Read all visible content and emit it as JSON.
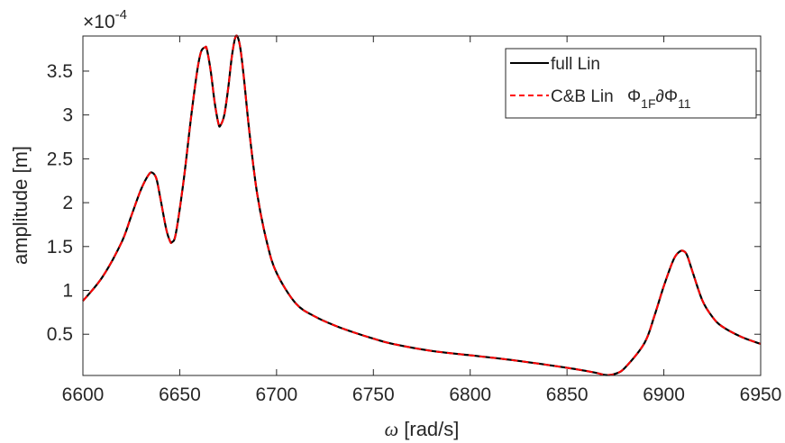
{
  "chart_data": {
    "type": "line",
    "title": "",
    "xlabel_symbol": "ω",
    "xlabel_rest": " [rad/s]",
    "ylabel": "amplitude [m]",
    "exponent_label": {
      "base": "×10",
      "power": "-4"
    },
    "xlim": [
      6600,
      6950
    ],
    "ylim": [
      0.03,
      3.9
    ],
    "xticks": [
      6600,
      6650,
      6700,
      6750,
      6800,
      6850,
      6900,
      6950
    ],
    "yticks": [
      0.5,
      1,
      1.5,
      2,
      2.5,
      3,
      3.5
    ],
    "ytick_labels": [
      "0.5",
      "1",
      "1.5",
      "2",
      "2.5",
      "3",
      "3.5"
    ],
    "legend_position": "top-right",
    "series": [
      {
        "name_parts": {
          "main": "full Lin"
        },
        "color": "#000000",
        "style": "solid",
        "x": [
          6600,
          6610,
          6620,
          6625,
          6630,
          6634,
          6636,
          6638,
          6640,
          6643,
          6645,
          6646,
          6648,
          6652,
          6656,
          6659,
          6661,
          6663,
          6664,
          6666,
          6668,
          6670,
          6671,
          6673,
          6675,
          6677,
          6679,
          6681,
          6683,
          6686,
          6690,
          6695,
          6700,
          6710,
          6720,
          6730,
          6740,
          6750,
          6760,
          6780,
          6800,
          6820,
          6840,
          6855,
          6865,
          6870,
          6875,
          6880,
          6890,
          6895,
          6900,
          6905,
          6908,
          6910,
          6912,
          6915,
          6920,
          6925,
          6930,
          6940,
          6950
        ],
        "y": [
          0.88,
          1.15,
          1.55,
          1.85,
          2.15,
          2.32,
          2.34,
          2.27,
          2.05,
          1.7,
          1.56,
          1.55,
          1.65,
          2.25,
          3.0,
          3.5,
          3.72,
          3.77,
          3.75,
          3.5,
          3.15,
          2.9,
          2.88,
          3.0,
          3.3,
          3.68,
          3.9,
          3.8,
          3.45,
          2.8,
          2.1,
          1.55,
          1.2,
          0.85,
          0.7,
          0.6,
          0.52,
          0.45,
          0.39,
          0.31,
          0.26,
          0.21,
          0.15,
          0.1,
          0.06,
          0.035,
          0.05,
          0.12,
          0.4,
          0.7,
          1.05,
          1.35,
          1.44,
          1.45,
          1.4,
          1.2,
          0.88,
          0.7,
          0.59,
          0.47,
          0.39
        ]
      },
      {
        "name_parts": {
          "main": "C&B  Lin  ",
          "phi": "Φ",
          "sub1": "1F",
          "mid": "∂Φ",
          "sub2": "11"
        },
        "color": "#ff0000",
        "style": "dashed",
        "x": [
          6600,
          6610,
          6620,
          6625,
          6630,
          6634,
          6636,
          6638,
          6640,
          6643,
          6645,
          6646,
          6648,
          6652,
          6656,
          6659,
          6661,
          6663,
          6664,
          6666,
          6668,
          6670,
          6671,
          6673,
          6675,
          6677,
          6679,
          6681,
          6683,
          6686,
          6690,
          6695,
          6700,
          6710,
          6720,
          6730,
          6740,
          6750,
          6760,
          6780,
          6800,
          6820,
          6840,
          6855,
          6865,
          6870,
          6875,
          6880,
          6890,
          6895,
          6900,
          6905,
          6908,
          6910,
          6912,
          6915,
          6920,
          6925,
          6930,
          6940,
          6950
        ],
        "y": [
          0.88,
          1.15,
          1.55,
          1.85,
          2.15,
          2.32,
          2.34,
          2.27,
          2.05,
          1.7,
          1.56,
          1.55,
          1.65,
          2.25,
          3.0,
          3.5,
          3.72,
          3.77,
          3.75,
          3.5,
          3.15,
          2.9,
          2.88,
          3.0,
          3.3,
          3.68,
          3.9,
          3.8,
          3.45,
          2.8,
          2.1,
          1.55,
          1.2,
          0.85,
          0.7,
          0.6,
          0.52,
          0.45,
          0.39,
          0.31,
          0.26,
          0.21,
          0.15,
          0.1,
          0.06,
          0.035,
          0.05,
          0.12,
          0.4,
          0.7,
          1.05,
          1.35,
          1.44,
          1.45,
          1.4,
          1.2,
          0.88,
          0.7,
          0.59,
          0.47,
          0.39
        ]
      }
    ]
  }
}
